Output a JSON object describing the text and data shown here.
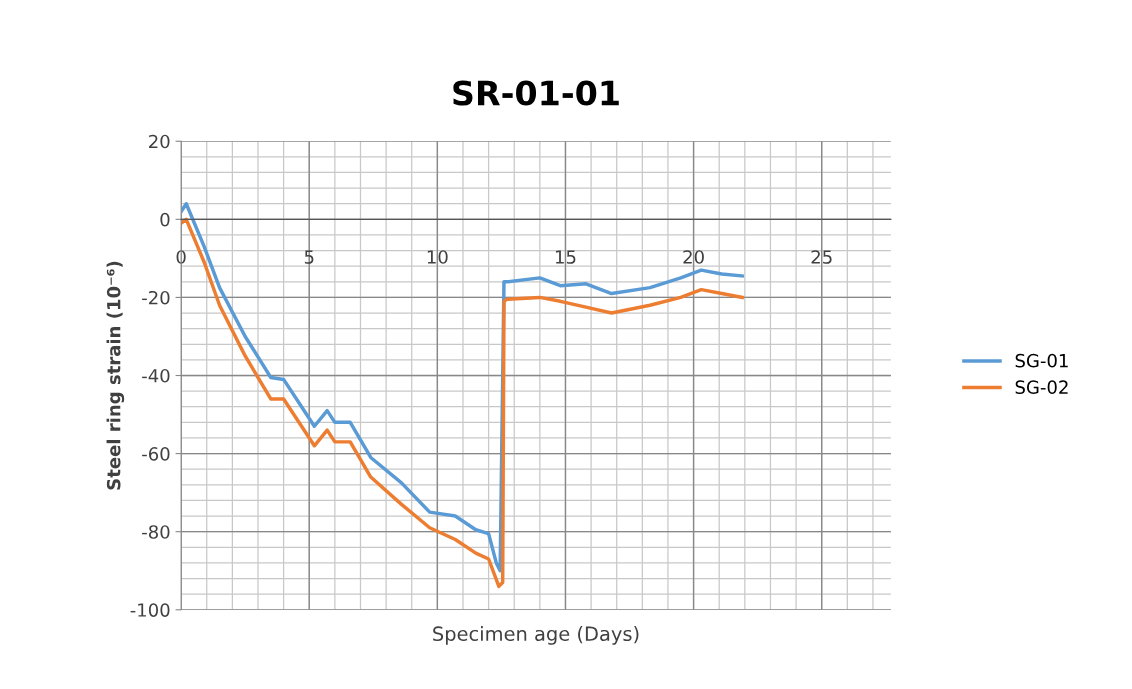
{
  "chart_data": {
    "type": "line",
    "title": "SR-01-01",
    "xlabel": "Specimen age (Days)",
    "ylabel": "Steel ring strain (10⁻⁶)",
    "xlim": [
      0,
      27.7
    ],
    "xticks": [
      0,
      5,
      10,
      15,
      20,
      25
    ],
    "ylim": [
      -100,
      20
    ],
    "yticks": [
      -100,
      -80,
      -60,
      -40,
      -20,
      0,
      20
    ],
    "grid": true,
    "legend": "right",
    "marker": "none",
    "line_style": "solid",
    "series": [
      {
        "name": "SG-01",
        "color": "#5b9bd5",
        "x": [
          0,
          0.2,
          0.9,
          1.5,
          2.5,
          3.5,
          4.0,
          4.7,
          5.2,
          5.7,
          6.0,
          6.6,
          7.4,
          8.6,
          9.7,
          10.7,
          11.5,
          12.0,
          12.3,
          12.45,
          12.6,
          12.7,
          14.0,
          14.8,
          15.8,
          16.8,
          18.3,
          19.5,
          20.3,
          21.1,
          21.9
        ],
        "values": [
          2,
          4,
          -7,
          -17.5,
          -30,
          -40.5,
          -41,
          -48,
          -53,
          -49,
          -52,
          -52,
          -61,
          -67.5,
          -75,
          -76,
          -79.5,
          -80.5,
          -88,
          -90,
          -16,
          -16,
          -15,
          -17,
          -16.5,
          -19,
          -17.5,
          -15,
          -13,
          -14,
          -14.5
        ]
      },
      {
        "name": "SG-02",
        "color": "#ed7d31",
        "x": [
          0,
          0.2,
          0.9,
          1.5,
          2.5,
          3.5,
          4.0,
          4.7,
          5.2,
          5.7,
          6.0,
          6.6,
          7.4,
          8.6,
          9.7,
          10.7,
          11.5,
          12.0,
          12.4,
          12.55,
          12.6,
          12.7,
          14.0,
          14.8,
          15.8,
          16.8,
          18.3,
          19.5,
          20.3,
          21.1,
          21.9
        ],
        "values": [
          -1,
          0,
          -11,
          -22,
          -35,
          -46,
          -46,
          -53,
          -58,
          -54,
          -57,
          -57,
          -66,
          -73,
          -79,
          -82,
          -85.5,
          -87,
          -94,
          -93,
          -21,
          -20.5,
          -20,
          -21,
          -22.5,
          -24,
          -22,
          -20,
          -18,
          -19,
          -20
        ]
      }
    ]
  }
}
